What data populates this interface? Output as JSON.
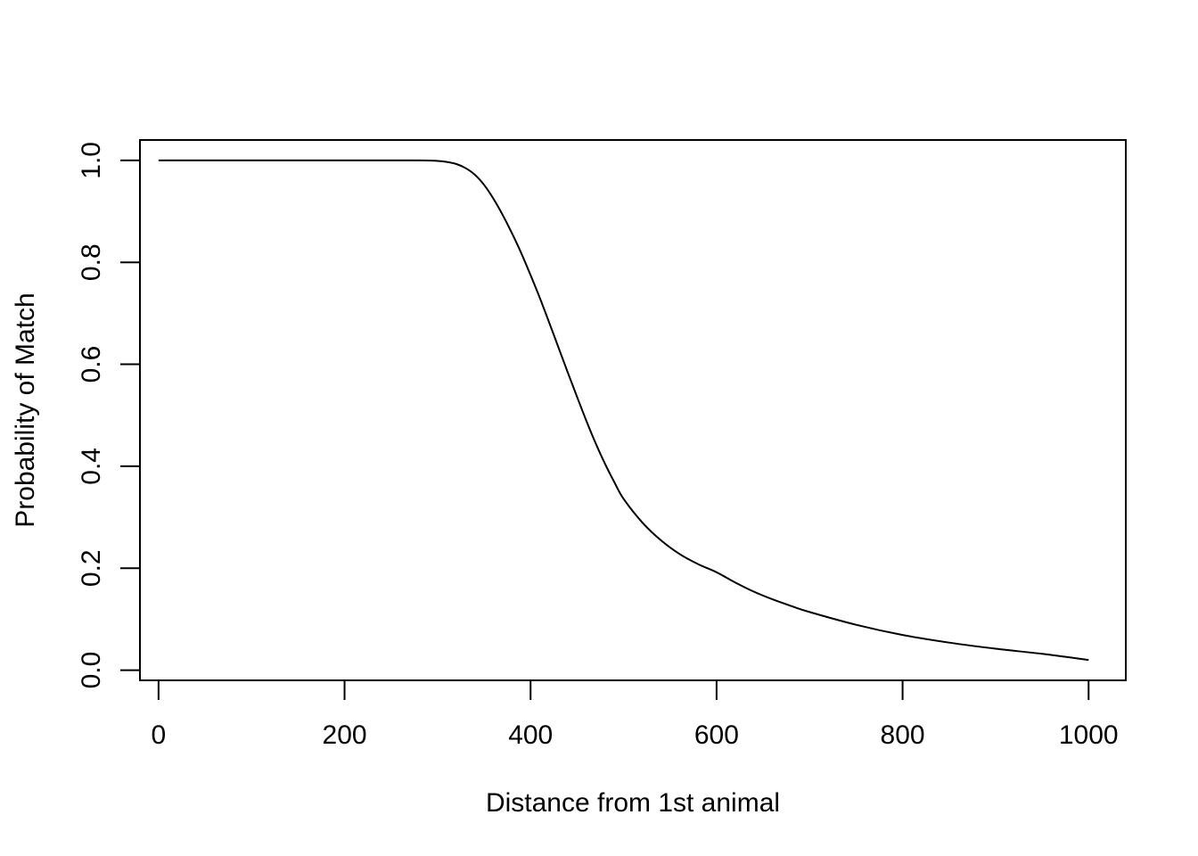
{
  "chart_data": {
    "type": "line",
    "title": "",
    "xlabel": "Distance from 1st animal",
    "ylabel": "Probability of Match",
    "xlim": [
      -20,
      1040
    ],
    "ylim": [
      -0.02,
      1.04
    ],
    "x_ticks": [
      0,
      200,
      400,
      600,
      800,
      1000
    ],
    "x_tick_labels": [
      "0",
      "200",
      "400",
      "600",
      "800",
      "1000"
    ],
    "y_ticks": [
      0.0,
      0.2,
      0.4,
      0.6,
      0.8,
      1.0
    ],
    "y_tick_labels": [
      "0.0",
      "0.2",
      "0.4",
      "0.6",
      "0.8",
      "1.0"
    ],
    "grid": false,
    "series": [
      {
        "color": "#000000",
        "x": [
          0,
          100,
          200,
          280,
          300,
          310,
          320,
          330,
          340,
          350,
          360,
          370,
          380,
          390,
          400,
          410,
          420,
          430,
          440,
          450,
          460,
          470,
          480,
          490,
          500,
          520,
          540,
          560,
          580,
          600,
          620,
          640,
          660,
          680,
          700,
          750,
          800,
          850,
          900,
          950,
          1000
        ],
        "y": [
          1.0,
          1.0,
          1.0,
          1.0,
          0.999,
          0.997,
          0.993,
          0.985,
          0.972,
          0.952,
          0.925,
          0.893,
          0.857,
          0.818,
          0.775,
          0.73,
          0.682,
          0.633,
          0.584,
          0.536,
          0.489,
          0.445,
          0.405,
          0.369,
          0.336,
          0.29,
          0.255,
          0.228,
          0.208,
          0.192,
          0.172,
          0.154,
          0.139,
          0.126,
          0.114,
          0.089,
          0.069,
          0.054,
          0.042,
          0.032,
          0.02
        ]
      }
    ]
  }
}
